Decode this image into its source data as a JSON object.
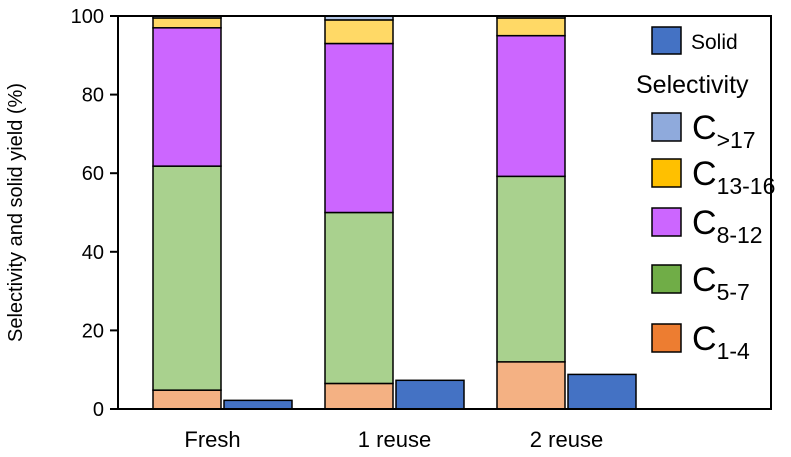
{
  "chart_data": {
    "type": "bar",
    "stacked": true,
    "ylabel": "Selectivity and solid yield (%)",
    "ylim": [
      0,
      100
    ],
    "yticks": [
      0,
      20,
      40,
      60,
      80,
      100
    ],
    "categories": [
      "Fresh",
      "1 reuse",
      "2 reuse"
    ],
    "selectivity_title": "Selectivity",
    "series": [
      {
        "key": "c1_4",
        "base": "C",
        "sub": "1-4",
        "color": "#f4b183",
        "legend_color": "#ed7d31",
        "values": [
          4.8,
          6.5,
          12.0
        ]
      },
      {
        "key": "c5_7",
        "base": "C",
        "sub": "5-7",
        "color": "#a9d18e",
        "legend_color": "#70ad47",
        "values": [
          57.0,
          43.5,
          47.2
        ]
      },
      {
        "key": "c8_12",
        "base": "C",
        "sub": "8-12",
        "color": "#cc66ff",
        "legend_color": "#cc66ff",
        "values": [
          35.2,
          43.0,
          35.8
        ]
      },
      {
        "key": "c13_16",
        "base": "C",
        "sub": "13-16",
        "color": "#ffd966",
        "legend_color": "#ffc000",
        "values": [
          2.5,
          6.0,
          4.5
        ]
      },
      {
        "key": "c17",
        "base": "C",
        "sub": ">17",
        "color": "#b4c7e7",
        "legend_color": "#8faadc",
        "values": [
          0.5,
          1.0,
          0.5
        ]
      }
    ],
    "solid": {
      "name": "Solid",
      "color": "#4472c4",
      "values": [
        2.2,
        7.3,
        8.8
      ]
    },
    "legend_position": "right"
  }
}
